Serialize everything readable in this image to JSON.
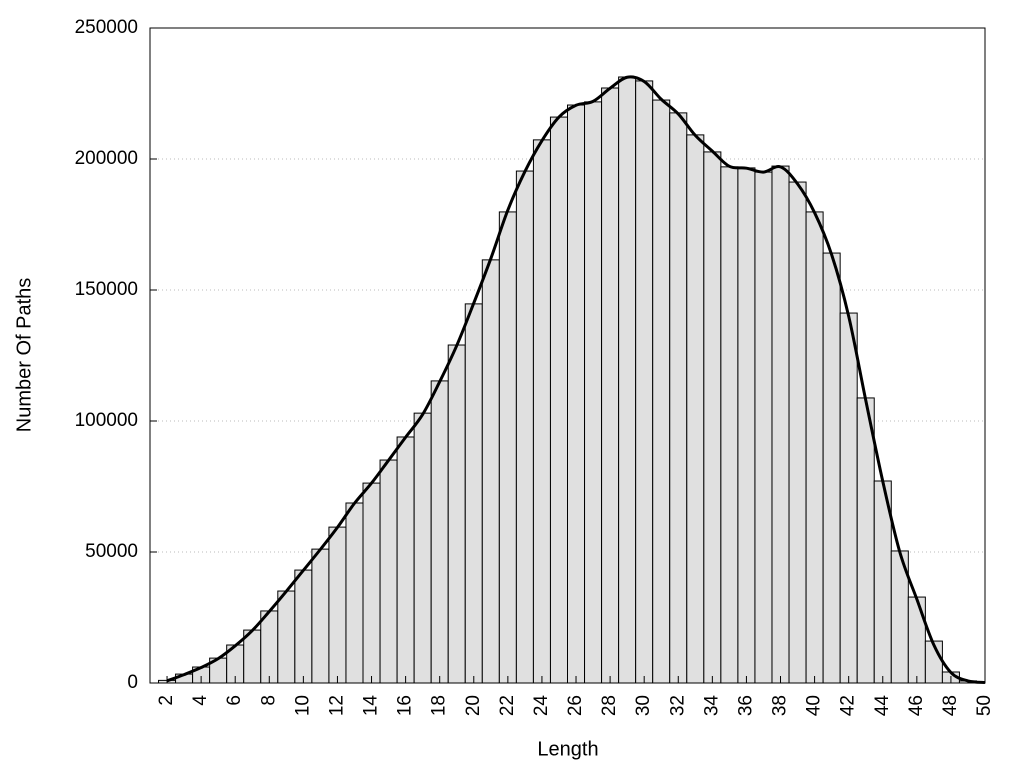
{
  "chart_data": {
    "type": "histogram",
    "xlabel": "Length",
    "ylabel": "Number Of Paths",
    "bins": [
      1.5,
      2.5,
      3.5,
      4.5,
      5.5,
      6.5,
      7.5,
      8.5,
      9.5,
      10.5,
      11.5,
      12.5,
      13.5,
      14.5,
      15.5,
      16.5,
      17.5,
      18.5,
      19.5,
      20.5,
      21.5,
      22.5,
      23.5,
      24.5,
      25.5,
      26.5,
      27.5,
      28.5,
      29.5,
      30.5,
      31.5,
      32.5,
      33.5,
      34.5,
      35.5,
      36.5,
      37.5,
      38.5,
      39.5,
      40.5,
      41.5,
      42.5,
      43.5,
      44.5,
      45.5,
      46.5,
      47.5,
      48.5,
      49.5
    ],
    "counts": [
      1000,
      3400,
      6100,
      9500,
      14500,
      20200,
      27500,
      35100,
      43100,
      51100,
      59500,
      68700,
      76300,
      85100,
      93900,
      103000,
      115300,
      129000,
      144700,
      161500,
      179800,
      195400,
      207300,
      216000,
      220600,
      221800,
      227100,
      231300,
      229800,
      222500,
      217600,
      209200,
      202700,
      197000,
      196600,
      195000,
      197300,
      191200,
      179800,
      164100,
      141200,
      108800,
      77100,
      50400,
      32800,
      16000,
      4200,
      800
    ],
    "bar_color": "#e0e0e0",
    "curve": {
      "color": "#000000",
      "x": [
        2,
        3,
        4,
        5,
        6,
        7,
        8,
        9,
        10,
        11,
        12,
        13,
        14,
        15,
        16,
        17,
        18,
        19,
        20,
        21,
        22,
        23,
        24,
        25,
        26,
        27,
        28,
        29,
        30,
        31,
        32,
        33,
        34,
        35,
        36,
        37,
        38,
        39,
        40,
        41,
        42,
        43,
        44,
        45,
        46,
        47,
        48,
        49,
        50
      ],
      "values": [
        800,
        3200,
        5900,
        9300,
        14200,
        20000,
        27300,
        35000,
        43000,
        51000,
        59400,
        68600,
        76300,
        85000,
        93800,
        102500,
        115000,
        128800,
        145000,
        162000,
        180500,
        195200,
        207000,
        216000,
        220500,
        222000,
        227000,
        231200,
        229600,
        222800,
        217200,
        209000,
        203000,
        197200,
        196500,
        195000,
        197000,
        190500,
        179500,
        163500,
        140000,
        108000,
        77000,
        50000,
        32000,
        14500,
        4000,
        800,
        200
      ]
    },
    "xlim": [
      1,
      50
    ],
    "xticks": [
      2,
      4,
      6,
      8,
      10,
      12,
      14,
      16,
      18,
      20,
      22,
      24,
      26,
      28,
      30,
      32,
      34,
      36,
      38,
      40,
      42,
      44,
      46,
      48,
      50
    ],
    "ylim": [
      0,
      250000
    ],
    "yticks": [
      0,
      50000,
      100000,
      150000,
      200000,
      250000
    ],
    "grid": true
  }
}
